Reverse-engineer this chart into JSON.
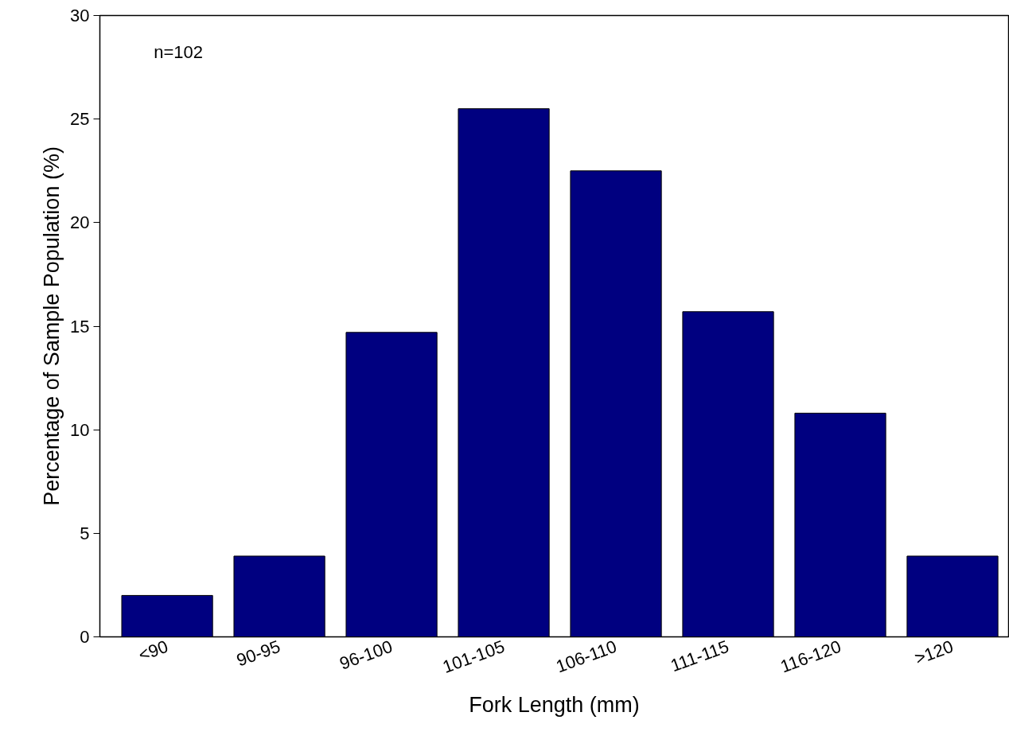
{
  "chart_data": {
    "type": "bar",
    "xlabel": "Fork Length (mm)",
    "ylabel": "Percentage of Sample Population (%)",
    "categories": [
      "<90",
      "90-95",
      "96-100",
      "101-105",
      "106-110",
      "111-115",
      "116-120",
      ">120"
    ],
    "values": [
      2.0,
      3.9,
      14.7,
      25.5,
      22.5,
      15.7,
      10.8,
      3.9
    ],
    "color": "#000080",
    "ylim": [
      0,
      30
    ],
    "yticks": [
      0,
      5,
      10,
      15,
      20,
      25,
      30
    ],
    "grid": false,
    "annotations": [
      "n=102"
    ]
  }
}
